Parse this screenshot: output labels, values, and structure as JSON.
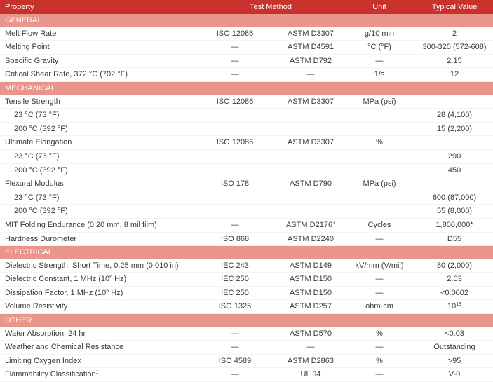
{
  "header": {
    "property": "Property",
    "test_method": "Test Method",
    "unit": "Unit",
    "typical_value": "Typical Value"
  },
  "sections": [
    {
      "title": "GENERAL",
      "rows": [
        {
          "property": "Melt Flow Rate",
          "iso": "ISO 12086",
          "astm": "ASTM D3307",
          "unit": "g/10 min",
          "value": "2"
        },
        {
          "property": "Melting Point",
          "iso": "—",
          "astm": "ASTM D4591",
          "unit": "°C (°F)",
          "value": "300-320 (572-608)"
        },
        {
          "property": "Specific Gravity",
          "iso": "—",
          "astm": "ASTM D792",
          "unit": "—",
          "value": "2.15"
        },
        {
          "property": "Critical Shear Rate, 372 °C (702 °F)",
          "iso": "—",
          "astm": "—",
          "unit": "1/s",
          "value": "12"
        }
      ]
    },
    {
      "title": "MECHANICAL",
      "rows": [
        {
          "property": "Tensile Strength",
          "iso": "ISO 12086",
          "astm": "ASTM D3307",
          "unit": "MPa (psi)",
          "value": ""
        },
        {
          "property": "23 °C (73 °F)",
          "sub": true,
          "iso": "",
          "astm": "",
          "unit": "",
          "value": "28 (4,100)"
        },
        {
          "property": "200 °C (392 °F)",
          "sub": true,
          "iso": "",
          "astm": "",
          "unit": "",
          "value": "15 (2,200)"
        },
        {
          "property": "Ultimate Elongation",
          "iso": "ISO 12086",
          "astm": "ASTM D3307",
          "unit": "%",
          "value": ""
        },
        {
          "property": "23 °C (73 °F)",
          "sub": true,
          "iso": "",
          "astm": "",
          "unit": "",
          "value": "290"
        },
        {
          "property": "200 °C (392 °F)",
          "sub": true,
          "iso": "",
          "astm": "",
          "unit": "",
          "value": "450"
        },
        {
          "property": "Flexural Modulus",
          "iso": "ISO 178",
          "astm": "ASTM D790",
          "unit": "MPa (psi)",
          "value": ""
        },
        {
          "property": "23 °C (73 °F)",
          "sub": true,
          "iso": "",
          "astm": "",
          "unit": "",
          "value": "600 (87,000)"
        },
        {
          "property": "200 °C (392 °F)",
          "sub": true,
          "iso": "",
          "astm": "",
          "unit": "",
          "value": "55 (8,000)"
        },
        {
          "property": "MIT Folding Endurance (0.20 mm, 8 mil film)",
          "iso": "—",
          "astm": "ASTM D2176",
          "astm_sup": "1",
          "unit": "Cycles",
          "value": "1,800,000*"
        },
        {
          "property": "Hardness Durometer",
          "iso": "ISO 868",
          "astm": "ASTM D2240",
          "unit": "—",
          "value": "D55"
        }
      ]
    },
    {
      "title": "ELECTRICAL",
      "rows": [
        {
          "property": "Dielectric Strength, Short Time, 0.25 mm (0.010 in)",
          "iso": "IEC 243",
          "astm": "ASTM D149",
          "unit": "kV/mm (V/mil)",
          "value": "80 (2,000)"
        },
        {
          "property": "Dielectric Constant, 1 MHz (10",
          "prop_sup": "6",
          "prop_after": " Hz)",
          "iso": "IEC 250",
          "astm": "ASTM D150",
          "unit": "—",
          "value": "2.03"
        },
        {
          "property": "Dissipation Factor, 1 MHz (10",
          "prop_sup": "6",
          "prop_after": " Hz)",
          "iso": "IEC 250",
          "astm": "ASTM D150",
          "unit": "—",
          "value": "<0.0002"
        },
        {
          "property": "Volume Resistivity",
          "iso": "ISO 1325",
          "astm": "ASTM D257",
          "unit": "ohm·cm",
          "value": "10",
          "value_sup": "18"
        }
      ]
    },
    {
      "title": "OTHER",
      "rows": [
        {
          "property": "Water Absorption, 24 hr",
          "iso": "—",
          "astm": "ASTM D570",
          "unit": "%",
          "value": "<0.03"
        },
        {
          "property": "Weather and Chemical Resistance",
          "iso": "—",
          "astm": "—",
          "unit": "—",
          "value": "Outstanding"
        },
        {
          "property": "Limiting Oxygen Index",
          "iso": "ISO 4589",
          "astm": "ASTM D2863",
          "unit": "%",
          "value": ">95"
        },
        {
          "property": "Flammability Classification",
          "prop_sup": "1",
          "iso": "—",
          "astm": "UL 94",
          "unit": "—",
          "value": "V-0"
        }
      ]
    }
  ]
}
